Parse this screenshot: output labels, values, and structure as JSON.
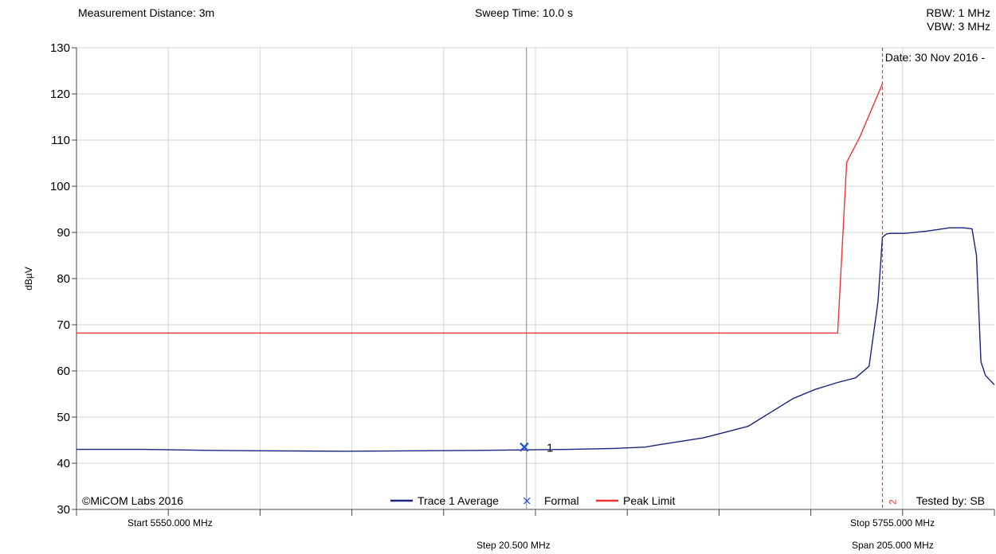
{
  "header": {
    "measurement_distance": "Measurement Distance: 3m",
    "sweep_time": "Sweep Time: 10.0 s",
    "rbw": "RBW: 1 MHz",
    "vbw": "VBW: 3 MHz"
  },
  "chart_data": {
    "type": "line",
    "ylabel": "dBµV",
    "ylim": [
      30,
      130
    ],
    "yticks": [
      30,
      40,
      50,
      60,
      70,
      80,
      90,
      100,
      110,
      120,
      130
    ],
    "xlim": [
      5550,
      5755
    ],
    "x_unit": "MHz",
    "grid": true,
    "date_label": "Date: 30 Nov 2016 -",
    "copyright": "©MiCOM Labs 2016",
    "tested_by": "Tested by: SB",
    "footer": {
      "start": "Start 5550.000 MHz",
      "stop": "Stop 5755.000 MHz",
      "step": "Step 20.500 MHz",
      "span": "Span 205.000 MHz"
    },
    "legend": [
      {
        "name": "Trace 1 Average",
        "marker": "line",
        "color": "#1a237e"
      },
      {
        "name": "Formal",
        "marker": "x",
        "color": "#1e50d8"
      },
      {
        "name": "Peak Limit",
        "marker": "line",
        "color": "#ee3333"
      }
    ],
    "series": [
      {
        "name": "Trace 1 Average",
        "color": "#1a237e",
        "x": [
          5550,
          5565,
          5580,
          5590,
          5610,
          5640,
          5660,
          5670,
          5677,
          5680,
          5690,
          5700,
          5705,
          5710,
          5715,
          5720,
          5724,
          5727,
          5729,
          5730,
          5731,
          5732,
          5735,
          5740,
          5745,
          5748,
          5750,
          5751,
          5752,
          5753,
          5755
        ],
        "values": [
          43,
          43,
          42.8,
          42.7,
          42.6,
          42.8,
          43,
          43.2,
          43.5,
          44,
          45.5,
          48,
          51,
          54,
          56,
          57.5,
          58.5,
          61,
          75,
          89,
          89.7,
          89.8,
          89.8,
          90.3,
          91,
          91,
          90.8,
          85,
          62,
          59,
          57
        ]
      },
      {
        "name": "Peak Limit",
        "color": "#ee3333",
        "x": [
          5550,
          5600,
          5650,
          5675,
          5720,
          5722,
          5725,
          5730
        ],
        "values": [
          68.2,
          68.2,
          68.2,
          68.2,
          68.2,
          105.2,
          110.8,
          122.2
        ]
      }
    ],
    "markers": [
      {
        "name": "Formal",
        "label": "1",
        "x": 5650,
        "y": 43.5,
        "shape": "x",
        "color": "#1e50d8"
      }
    ],
    "vlines": [
      {
        "x": 5650.5,
        "color": "#9a9a9a",
        "style": "solid"
      },
      {
        "x": 5730,
        "color": "#ee3333",
        "style": "dashed",
        "label": "2"
      }
    ]
  }
}
